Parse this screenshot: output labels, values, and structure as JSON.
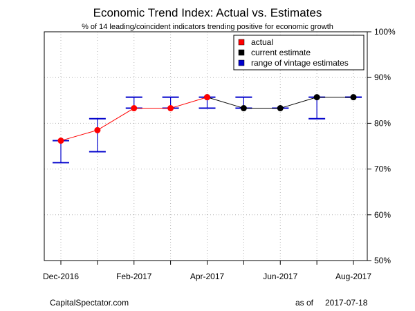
{
  "chart_data": {
    "type": "line",
    "title": "Economic Trend Index: Actual vs. Estimates",
    "subtitle": "% of 14 leading/coincident indicators trending positive for economic growth",
    "x": [
      "Dec-2016",
      "Jan-2017",
      "Feb-2017",
      "Mar-2017",
      "Apr-2017",
      "May-2017",
      "Jun-2017",
      "Jul-2017",
      "Aug-2017"
    ],
    "x_tick_labels": [
      "Dec-2016",
      "",
      "Feb-2017",
      "",
      "Apr-2017",
      "",
      "Jun-2017",
      "",
      "Aug-2017"
    ],
    "ylim": [
      50,
      100
    ],
    "y_ticks": [
      50,
      60,
      70,
      80,
      90,
      100
    ],
    "y_tick_labels": [
      "50%",
      "60%",
      "70%",
      "80%",
      "90%",
      "100%"
    ],
    "y_axis_side": "right",
    "grid": true,
    "legend_position": "top-right",
    "series": [
      {
        "name": "actual",
        "color": "#ff0000",
        "values": [
          76.2,
          78.5,
          83.3,
          83.3,
          85.7,
          null,
          null,
          null,
          null
        ]
      },
      {
        "name": "current estimate",
        "color": "#000000",
        "values": [
          null,
          null,
          null,
          null,
          85.7,
          83.3,
          83.3,
          85.7,
          85.7
        ]
      },
      {
        "name": "range of vintage estimates",
        "color": "#0000cc",
        "low": [
          71.4,
          73.8,
          83.3,
          83.3,
          83.3,
          83.3,
          83.3,
          81.0,
          85.7
        ],
        "high": [
          76.2,
          81.0,
          85.7,
          85.7,
          85.7,
          85.7,
          83.3,
          85.7,
          85.7
        ]
      }
    ]
  },
  "footer": {
    "source": "CapitalSpectator.com",
    "date_label": "as of",
    "date": "2017-07-18"
  }
}
